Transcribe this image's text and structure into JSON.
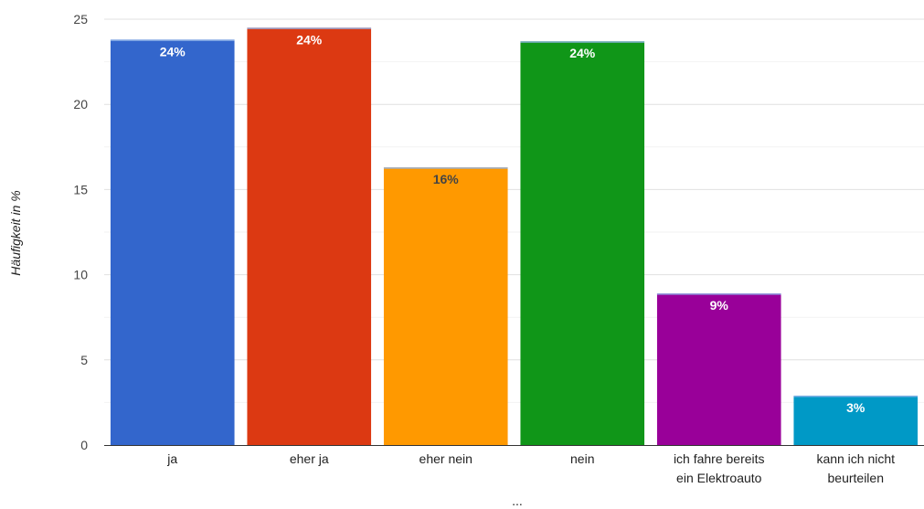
{
  "chart_data": {
    "type": "bar",
    "categories": [
      "ja",
      "eher ja",
      "eher nein",
      "nein",
      "ich fahre bereits ein Elektroauto",
      "kann ich nicht beurteilen"
    ],
    "category_lines": [
      [
        "ja"
      ],
      [
        "eher ja"
      ],
      [
        "eher nein"
      ],
      [
        "nein"
      ],
      [
        "ich fahre bereits",
        "ein Elektroauto"
      ],
      [
        "kann ich nicht",
        "beurteilen"
      ]
    ],
    "values": [
      23.8,
      24.5,
      16.3,
      23.7,
      8.9,
      2.9
    ],
    "data_labels": [
      "24%",
      "24%",
      "16%",
      "24%",
      "9%",
      "3%"
    ],
    "colors": [
      "#3366cc",
      "#dc3912",
      "#ff9900",
      "#109618",
      "#990099",
      "#0099c6"
    ],
    "label_colors": [
      "#ffffff",
      "#ffffff",
      "#444444",
      "#ffffff",
      "#ffffff",
      "#ffffff"
    ],
    "ylabel": "Häufigkeit in %",
    "xlabel": "...",
    "ylim": [
      0,
      25
    ],
    "yticks": [
      0,
      5,
      10,
      15,
      20,
      25
    ],
    "grid": true
  }
}
